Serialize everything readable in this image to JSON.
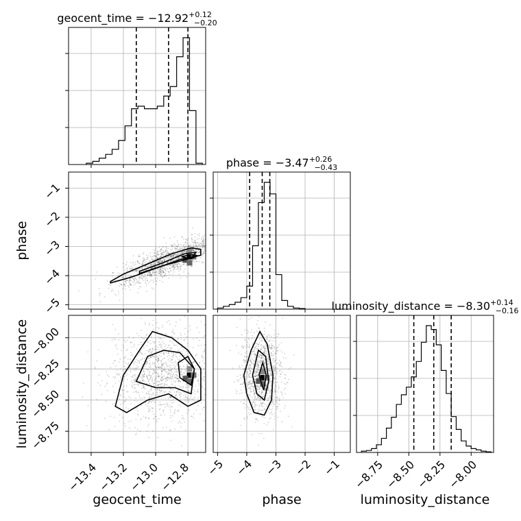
{
  "panels": {
    "geocent_time": {
      "title_prefix": "geocent_time = ",
      "title_value": "−12.92",
      "title_upper": "+0.12",
      "title_lower": "−0.20"
    },
    "phase": {
      "title_prefix": "phase = ",
      "title_value": "−3.47",
      "title_upper": "+0.26",
      "title_lower": "−0.43"
    },
    "luminosity_distance": {
      "title_prefix": "luminosity_distance = ",
      "title_value": "−8.30",
      "title_upper": "+0.14",
      "title_lower": "−0.16"
    }
  },
  "axis_labels": {
    "x_geocent_time": "geocent_time",
    "x_phase": "phase",
    "x_luminosity_distance": "luminosity_distance",
    "y_phase": "phase",
    "y_luminosity_distance": "luminosity_distance"
  },
  "ticks": {
    "geocent_time": [
      "−13.4",
      "−13.2",
      "−13.0",
      "−12.8"
    ],
    "phase": [
      "−5",
      "−4",
      "−3",
      "−2",
      "−1"
    ],
    "phase_y": [
      "−1",
      "−2",
      "−3",
      "−4",
      "−5"
    ],
    "luminosity_distance_x": [
      "−8.75",
      "−8.50",
      "−8.25",
      "−8.00"
    ],
    "luminosity_distance_y": [
      "−8.00",
      "−8.25",
      "−8.50",
      "−8.75"
    ]
  },
  "chart_data": {
    "type": "corner",
    "parameters": [
      "geocent_time",
      "phase",
      "luminosity_distance"
    ],
    "ranges": {
      "geocent_time": [
        -13.54,
        -12.69
      ],
      "phase": [
        -5.15,
        -0.45
      ],
      "luminosity_distance": [
        -8.92,
        -7.82
      ]
    },
    "grid": true,
    "histograms": {
      "geocent_time": {
        "bin_edges": [
          -13.43,
          -13.39,
          -13.35,
          -13.31,
          -13.27,
          -13.23,
          -13.19,
          -13.15,
          -13.11,
          -13.07,
          -13.03,
          -12.99,
          -12.95,
          -12.91,
          -12.87,
          -12.83,
          -12.79,
          -12.75,
          -12.71
        ],
        "counts": [
          2,
          5,
          10,
          16,
          24,
          38,
          61,
          88,
          92,
          88,
          88,
          92,
          108,
          123,
          170,
          200,
          85,
          2
        ],
        "quantiles": [
          -13.12,
          -12.92,
          -12.8
        ]
      },
      "phase": {
        "bin_edges": [
          -5.0,
          -4.8,
          -4.6,
          -4.4,
          -4.2,
          -4.0,
          -3.8,
          -3.6,
          -3.4,
          -3.2,
          -3.0,
          -2.8,
          -2.6,
          -2.4,
          -2.2,
          -2.0
        ],
        "counts": [
          2,
          5,
          8,
          12,
          20,
          40,
          110,
          185,
          220,
          200,
          60,
          15,
          5,
          2,
          1
        ],
        "quantiles": [
          -3.9,
          -3.47,
          -3.21
        ]
      },
      "luminosity_distance": {
        "bin_edges": [
          -8.88,
          -8.84,
          -8.8,
          -8.76,
          -8.72,
          -8.68,
          -8.64,
          -8.6,
          -8.56,
          -8.52,
          -8.48,
          -8.44,
          -8.4,
          -8.36,
          -8.32,
          -8.28,
          -8.24,
          -8.2,
          -8.16,
          -8.12,
          -8.08,
          -8.04,
          -8.0,
          -7.96,
          -7.92,
          -7.88,
          -7.84
        ],
        "counts": [
          2,
          3,
          6,
          12,
          22,
          38,
          55,
          75,
          90,
          102,
          118,
          142,
          172,
          198,
          192,
          168,
          128,
          92,
          56,
          36,
          18,
          10,
          6,
          4,
          2,
          1
        ],
        "quantiles": [
          -8.46,
          -8.3,
          -8.16
        ]
      }
    },
    "joint": {
      "phase_vs_geocent_time": {
        "x": "geocent_time",
        "y": "phase",
        "trend": [
          [
            -13.4,
            -4.6
          ],
          [
            -13.2,
            -4.1
          ],
          [
            -13.0,
            -3.6
          ],
          [
            -12.8,
            -3.2
          ]
        ],
        "density_peak": [
          -12.79,
          -3.35
        ]
      },
      "luminosity_distance_vs_geocent_time": {
        "x": "geocent_time",
        "y": "luminosity_distance",
        "density_peak": [
          -12.79,
          -8.3
        ]
      },
      "luminosity_distance_vs_phase": {
        "x": "phase",
        "y": "luminosity_distance",
        "density_peak": [
          -3.45,
          -8.32
        ]
      }
    }
  }
}
